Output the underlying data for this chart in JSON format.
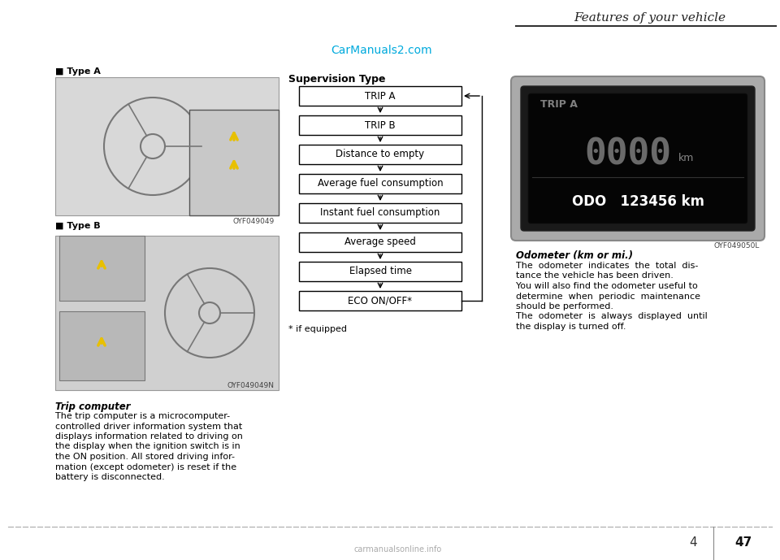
{
  "page_bg": "#ffffff",
  "header_text": "Features of your vehicle",
  "carmanuals_text": "CarManuals2.com",
  "carmanuals_color": "#00aadd",
  "supervision_title": "Supervision Type",
  "flowchart_boxes": [
    "TRIP A",
    "TRIP B",
    "Distance to empty",
    "Average fuel consumption",
    "Instant fuel consumption",
    "Average speed",
    "Elapsed time",
    "ECO ON/OFF*"
  ],
  "footnote": "* if equipped",
  "left_label_A": "■ Type A",
  "left_label_B": "■ Type B",
  "left_caption_bold": "Trip computer",
  "left_caption_text": "The trip computer is a microcomputer-\ncontrolled driver information system that\ndisplays information related to driving on\nthe display when the ignition switch is in\nthe ON position. All stored driving infor-\nmation (except odometer) is reset if the\nbattery is disconnected.",
  "right_caption_bold": "Odometer (km or mi.)",
  "right_caption_lines": [
    "The  odometer  indicates  the  total  dis-",
    "tance the vehicle has been driven.",
    "You will also find the odometer useful to",
    "determine  when  periodic  maintenance",
    "should be performed.",
    "The  odometer  is  always  displayed  until",
    "the display is turned off."
  ],
  "oyf049049": "OYF049049",
  "oyf049049n": "OYF049049N",
  "oyf049050l": "OYF049050L",
  "odo_trip_a": "TRIP A",
  "odo_0000": "0000",
  "odo_km_small": "km",
  "odo_odo_line": "ODO   123456 km",
  "page_num_4": "4",
  "page_num_47": "47",
  "footer_logo": "carmanualsonline.info",
  "img_A_bg": "#d8d8d8",
  "img_B_bg": "#d0d0d0"
}
